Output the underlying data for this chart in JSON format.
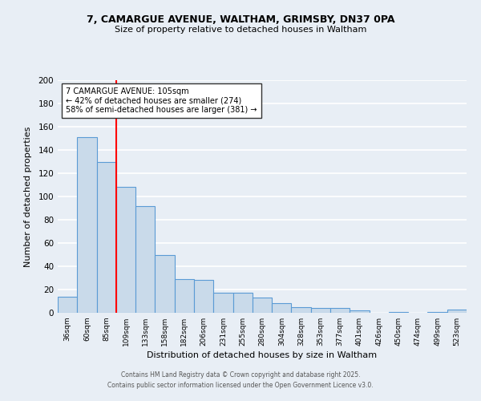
{
  "title": "7, CAMARGUE AVENUE, WALTHAM, GRIMSBY, DN37 0PA",
  "subtitle": "Size of property relative to detached houses in Waltham",
  "xlabel": "Distribution of detached houses by size in Waltham",
  "ylabel": "Number of detached properties",
  "bar_labels": [
    "36sqm",
    "60sqm",
    "85sqm",
    "109sqm",
    "133sqm",
    "158sqm",
    "182sqm",
    "206sqm",
    "231sqm",
    "255sqm",
    "280sqm",
    "304sqm",
    "328sqm",
    "353sqm",
    "377sqm",
    "401sqm",
    "426sqm",
    "450sqm",
    "474sqm",
    "499sqm",
    "523sqm"
  ],
  "bar_values": [
    14,
    151,
    130,
    108,
    92,
    50,
    29,
    28,
    17,
    17,
    13,
    8,
    5,
    4,
    4,
    2,
    0,
    1,
    0,
    1,
    3
  ],
  "bar_color": "#c9daea",
  "bar_edge_color": "#5b9bd5",
  "ylim": [
    0,
    200
  ],
  "yticks": [
    0,
    20,
    40,
    60,
    80,
    100,
    120,
    140,
    160,
    180,
    200
  ],
  "red_line_x": 2.5,
  "annotation_title": "7 CAMARGUE AVENUE: 105sqm",
  "annotation_line1": "← 42% of detached houses are smaller (274)",
  "annotation_line2": "58% of semi-detached houses are larger (381) →",
  "footer1": "Contains HM Land Registry data © Crown copyright and database right 2025.",
  "footer2": "Contains public sector information licensed under the Open Government Licence v3.0.",
  "background_color": "#e8eef5",
  "plot_bg_color": "#e8eef5",
  "grid_color": "#ffffff",
  "annotation_box_color": "#ffffff",
  "annotation_box_edge": "#333333"
}
